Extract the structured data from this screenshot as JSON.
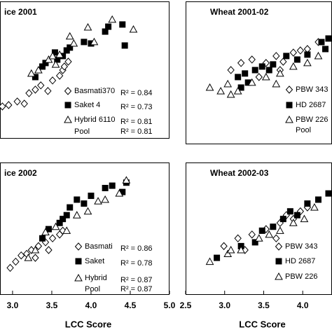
{
  "chart_data": [
    {
      "type": "scatter",
      "title": "ice 2001",
      "xlim": [
        2.84,
        5.0
      ],
      "ylim": [
        0,
        100
      ],
      "series": [
        {
          "name": "Basmati370",
          "marker": "diamond",
          "color": "#000000",
          "r2_label": "R² = 0.84",
          "x": [
            2.87,
            2.95,
            3.06,
            3.15,
            3.21,
            3.29,
            3.36,
            3.45,
            3.51,
            3.6,
            3.64,
            3.66,
            3.71
          ],
          "values": [
            23.1,
            24.1,
            26.7,
            25.1,
            32.8,
            35.4,
            38.5,
            34.4,
            42.1,
            45.6,
            49.7,
            52.3,
            55.9
          ]
        },
        {
          "name": "Saket 4",
          "marker": "square",
          "color": "#000000",
          "r2_label": "R² = 0.73",
          "x": [
            3.29,
            3.38,
            3.42,
            3.54,
            3.57,
            3.64,
            3.69,
            3.73,
            3.91,
            4.0,
            4.18,
            4.22,
            4.4,
            4.43
          ],
          "values": [
            44.6,
            52.3,
            54.9,
            62.6,
            57.4,
            60.0,
            64.1,
            66.2,
            70.3,
            69.2,
            77.9,
            81.5,
            83.1,
            67.7
          ]
        },
        {
          "name": "Hybrid 6110",
          "marker": "triangle",
          "color": "#000000",
          "r2_label": "R² = 0.81",
          "x": [
            3.24,
            3.33,
            3.46,
            3.51,
            3.55,
            3.6,
            3.73,
            3.78,
            3.96,
            4.04,
            4.27,
            4.54
          ],
          "values": [
            47.2,
            49.7,
            57.4,
            60.0,
            53.8,
            61.0,
            74.4,
            69.2,
            81.0,
            70.3,
            86.7,
            79.5
          ]
        }
      ],
      "pool_label": "Pool",
      "pool_r2_label": "R² = 0.81"
    },
    {
      "type": "scatter",
      "title": "Wheat  2001-02",
      "xlim": [
        2.5,
        4.375
      ],
      "ylim": [
        0,
        100
      ],
      "series": [
        {
          "name": "PBW 343",
          "marker": "diamond",
          "color": "#000000",
          "x": [
            3.08,
            3.21,
            3.35,
            3.53,
            3.66,
            3.75,
            3.88,
            3.97,
            4.06,
            4.2,
            3.44,
            3.71
          ],
          "values": [
            51.7,
            56.7,
            59.1,
            56.7,
            61.6,
            57.6,
            64.0,
            65.5,
            66.5,
            71.4,
            46.8,
            51.7
          ]
        },
        {
          "name": "HD 2687",
          "marker": "square",
          "color": "#000000",
          "x": [
            3.17,
            3.26,
            3.39,
            3.48,
            3.57,
            3.62,
            3.79,
            3.93,
            4.06,
            4.24,
            4.29,
            4.33,
            3.3,
            3.21
          ],
          "values": [
            46.8,
            49.3,
            51.7,
            54.2,
            51.7,
            55.7,
            61.6,
            59.1,
            62.6,
            71.4,
            66.5,
            73.9,
            42.9,
            39.4
          ]
        },
        {
          "name": "PBW 226",
          "marker": "triangle",
          "color": "#000000",
          "x": [
            2.81,
            2.95,
            3.04,
            3.17,
            3.35,
            3.53,
            3.71,
            3.88,
            4.06,
            4.2,
            3.08,
            3.66
          ],
          "values": [
            39.4,
            36.9,
            41.9,
            36.9,
            42.9,
            46.8,
            49.3,
            54.2,
            56.7,
            61.6,
            34.5,
            41.9
          ]
        }
      ],
      "pool_label": "Pool"
    },
    {
      "type": "scatter",
      "title": "ice 2002",
      "xlim": [
        2.84,
        5.0
      ],
      "ylim": [
        0,
        100
      ],
      "xlabel": "LCC Score",
      "xticks": [
        {
          "value": 3,
          "label": "3.0"
        },
        3.5,
        {
          "value": 4,
          "label": "4.0"
        },
        4.5,
        {
          "value": 5,
          "label": "5.0"
        }
      ],
      "series": [
        {
          "name": "Basmati",
          "marker": "diamond",
          "color": "#000000",
          "r2_label": "R² = 0.86",
          "x": [
            2.97,
            3.04,
            3.11,
            3.18,
            3.24,
            3.33,
            3.42,
            3.51,
            3.6,
            3.64,
            3.46,
            3.29
          ],
          "values": [
            20.0,
            24.7,
            29.4,
            30.6,
            33.5,
            36.5,
            39.4,
            42.4,
            45.3,
            48.2,
            33.5,
            27.6
          ]
        },
        {
          "name": "Saket",
          "marker": "square",
          "color": "#000000",
          "r2_label": "R² = 0.78",
          "x": [
            3.38,
            3.46,
            3.6,
            3.64,
            3.69,
            3.73,
            3.82,
            3.91,
            4.0,
            4.18,
            4.27,
            4.4,
            4.45
          ],
          "values": [
            42.4,
            49.4,
            54.1,
            57.1,
            60.0,
            65.9,
            71.8,
            68.8,
            74.7,
            80.6,
            82.4,
            77.6,
            84.7
          ]
        },
        {
          "name": "Hybrid",
          "marker": "triangle",
          "color": "#000000",
          "r2_label": "R² = 0.87",
          "x": [
            3.2,
            3.29,
            3.42,
            3.55,
            3.69,
            3.82,
            3.96,
            4.09,
            4.18,
            4.36,
            4.45
          ],
          "values": [
            27.6,
            33.5,
            47.1,
            51.2,
            48.2,
            60.0,
            62.9,
            70.6,
            71.8,
            76.5,
            86.5
          ]
        }
      ],
      "pool_label": "Pool",
      "pool_r2_label": "R² = 0.87"
    },
    {
      "type": "scatter",
      "title": "Wheat  2002-03",
      "xlim": [
        2.5,
        4.375
      ],
      "ylim": [
        0,
        100
      ],
      "xlabel": "LCC Score",
      "xticks": [
        2.5,
        {
          "value": 3,
          "label": "3.0"
        },
        3.5,
        {
          "value": 4,
          "label": "4.0"
        }
      ],
      "series": [
        {
          "name": "PBW 343",
          "marker": "diamond",
          "color": "#000000",
          "x": [
            2.99,
            3.17,
            3.35,
            3.53,
            3.71,
            3.79,
            3.88,
            3.97,
            4.06,
            3.26,
            3.66
          ],
          "values": [
            36.5,
            42.4,
            45.3,
            49.4,
            54.1,
            60.0,
            57.1,
            62.9,
            65.9,
            33.5,
            42.4
          ]
        },
        {
          "name": "HD 2687",
          "marker": "square",
          "color": "#000000",
          "x": [
            2.9,
            3.21,
            3.39,
            3.48,
            3.62,
            3.75,
            3.84,
            3.93,
            4.06,
            4.2,
            4.33
          ],
          "values": [
            27.6,
            36.5,
            39.4,
            48.2,
            51.2,
            57.1,
            62.9,
            60.0,
            68.8,
            71.8,
            76.5
          ]
        },
        {
          "name": "PBW 226",
          "marker": "triangle",
          "color": "#000000",
          "x": [
            2.81,
            3.04,
            3.21,
            3.44,
            3.57,
            3.71,
            3.88,
            4.02,
            4.15,
            3.08
          ],
          "values": [
            24.7,
            30.6,
            33.5,
            42.4,
            45.3,
            48.2,
            54.1,
            57.1,
            65.9,
            33.5
          ]
        }
      ]
    }
  ]
}
